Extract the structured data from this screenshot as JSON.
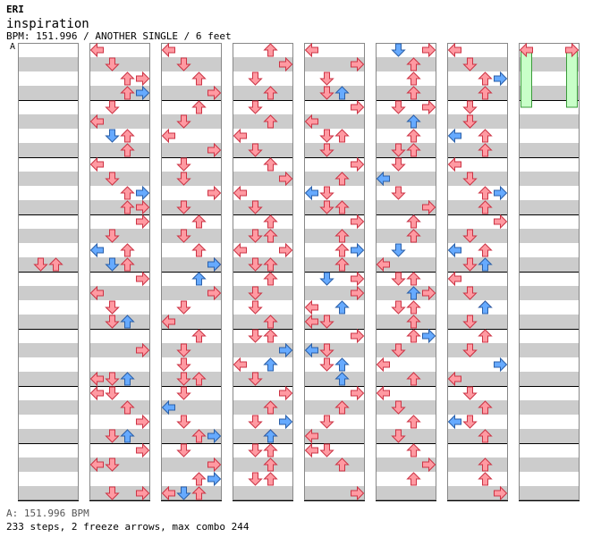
{
  "header": {
    "artist": "ERI",
    "title": "inspiration",
    "info": "BPM: 151.996 / ANOTHER SINGLE / 6 feet",
    "section_marker": "A"
  },
  "footer": {
    "bpm_line": "A: 151.996 BPM",
    "summary": "233 steps, 2 freeze arrows, max combo 244"
  },
  "colors": {
    "normal_arrow": "#ff9aa2",
    "normal_arrow_stroke": "#cc3344",
    "eighth_arrow": "#66aaff",
    "eighth_arrow_stroke": "#2a5fa8",
    "freeze": "#c8ffc8",
    "freeze_stroke": "#3a9a3a",
    "stripe_gray": "#cccccc",
    "measure_line": "#000000"
  },
  "chart_data": {
    "type": "stepchart",
    "lanes": [
      "left",
      "down",
      "up",
      "right"
    ],
    "columns": [
      {
        "arrows": [
          [
            15,
            1,
            0
          ],
          [
            15,
            2,
            0
          ]
        ],
        "freezes": []
      },
      {
        "arrows": [
          [
            0,
            0,
            0
          ],
          [
            1,
            1,
            0
          ],
          [
            2,
            3,
            0
          ],
          [
            2,
            2,
            0
          ],
          [
            3,
            3,
            1
          ],
          [
            3,
            2,
            0
          ],
          [
            4,
            1,
            0
          ],
          [
            5,
            0,
            0
          ],
          [
            6,
            2,
            0
          ],
          [
            6,
            1,
            1
          ],
          [
            7,
            2,
            0
          ],
          [
            8,
            0,
            0
          ],
          [
            9,
            1,
            0
          ],
          [
            10,
            2,
            0
          ],
          [
            10,
            3,
            1
          ],
          [
            11,
            2,
            0
          ],
          [
            11,
            3,
            0
          ],
          [
            12,
            3,
            0
          ],
          [
            13,
            1,
            0
          ],
          [
            14,
            2,
            0
          ],
          [
            14,
            0,
            1
          ],
          [
            15,
            2,
            0
          ],
          [
            15,
            1,
            1
          ],
          [
            16,
            3,
            0
          ],
          [
            17,
            0,
            0
          ],
          [
            18,
            1,
            0
          ],
          [
            18,
            1,
            0
          ],
          [
            19,
            2,
            1
          ],
          [
            19,
            1,
            0
          ],
          [
            21,
            3,
            0
          ],
          [
            23,
            0,
            0
          ],
          [
            23,
            1,
            0
          ],
          [
            23,
            2,
            1
          ],
          [
            24,
            0,
            0
          ],
          [
            24,
            1,
            0
          ],
          [
            25,
            2,
            0
          ],
          [
            26,
            3,
            0
          ],
          [
            27,
            1,
            0
          ],
          [
            27,
            2,
            1
          ],
          [
            28,
            3,
            0
          ],
          [
            29,
            0,
            0
          ],
          [
            29,
            1,
            0
          ],
          [
            31,
            3,
            0
          ],
          [
            31,
            1,
            0
          ]
        ],
        "freezes": []
      },
      {
        "arrows": [
          [
            0,
            0,
            0
          ],
          [
            1,
            1,
            0
          ],
          [
            2,
            2,
            0
          ],
          [
            3,
            3,
            0
          ],
          [
            4,
            2,
            0
          ],
          [
            5,
            1,
            0
          ],
          [
            6,
            0,
            0
          ],
          [
            7,
            3,
            0
          ],
          [
            8,
            1,
            0
          ],
          [
            9,
            1,
            0
          ],
          [
            10,
            3,
            0
          ],
          [
            11,
            1,
            0
          ],
          [
            12,
            2,
            0
          ],
          [
            13,
            1,
            0
          ],
          [
            14,
            2,
            0
          ],
          [
            15,
            3,
            0
          ],
          [
            15,
            3,
            1
          ],
          [
            16,
            2,
            1
          ],
          [
            17,
            3,
            0
          ],
          [
            18,
            1,
            0
          ],
          [
            19,
            0,
            0
          ],
          [
            20,
            2,
            0
          ],
          [
            21,
            1,
            0
          ],
          [
            22,
            1,
            0
          ],
          [
            23,
            2,
            0
          ],
          [
            23,
            1,
            0
          ],
          [
            24,
            1,
            0
          ],
          [
            25,
            0,
            1
          ],
          [
            26,
            1,
            0
          ],
          [
            27,
            2,
            0
          ],
          [
            27,
            3,
            1
          ],
          [
            28,
            1,
            0
          ],
          [
            29,
            3,
            0
          ],
          [
            30,
            2,
            0
          ],
          [
            30,
            3,
            1
          ],
          [
            31,
            0,
            0
          ],
          [
            31,
            2,
            0
          ],
          [
            31,
            1,
            1
          ]
        ],
        "freezes": []
      },
      {
        "arrows": [
          [
            0,
            2,
            0
          ],
          [
            1,
            3,
            0
          ],
          [
            2,
            1,
            0
          ],
          [
            3,
            2,
            0
          ],
          [
            4,
            1,
            0
          ],
          [
            5,
            2,
            0
          ],
          [
            6,
            0,
            0
          ],
          [
            7,
            1,
            0
          ],
          [
            8,
            2,
            0
          ],
          [
            9,
            3,
            0
          ],
          [
            10,
            0,
            0
          ],
          [
            11,
            1,
            0
          ],
          [
            12,
            2,
            0
          ],
          [
            13,
            1,
            0
          ],
          [
            13,
            2,
            0
          ],
          [
            14,
            0,
            0
          ],
          [
            14,
            3,
            0
          ],
          [
            15,
            1,
            0
          ],
          [
            15,
            2,
            0
          ],
          [
            16,
            2,
            0
          ],
          [
            17,
            1,
            0
          ],
          [
            18,
            1,
            0
          ],
          [
            19,
            2,
            0
          ],
          [
            20,
            1,
            0
          ],
          [
            20,
            2,
            0
          ],
          [
            21,
            3,
            1
          ],
          [
            22,
            0,
            0
          ],
          [
            22,
            2,
            1
          ],
          [
            23,
            1,
            0
          ],
          [
            24,
            3,
            0
          ],
          [
            25,
            2,
            0
          ],
          [
            26,
            1,
            0
          ],
          [
            26,
            3,
            1
          ],
          [
            27,
            2,
            0
          ],
          [
            27,
            2,
            1
          ],
          [
            28,
            1,
            0
          ],
          [
            28,
            2,
            0
          ],
          [
            29,
            2,
            0
          ],
          [
            30,
            1,
            0
          ],
          [
            30,
            2,
            0
          ]
        ],
        "freezes": []
      },
      {
        "arrows": [
          [
            0,
            0,
            0
          ],
          [
            1,
            3,
            0
          ],
          [
            2,
            1,
            0
          ],
          [
            3,
            2,
            1
          ],
          [
            3,
            1,
            0
          ],
          [
            4,
            3,
            0
          ],
          [
            5,
            0,
            0
          ],
          [
            6,
            1,
            0
          ],
          [
            6,
            2,
            0
          ],
          [
            7,
            1,
            0
          ],
          [
            8,
            3,
            0
          ],
          [
            9,
            2,
            0
          ],
          [
            10,
            1,
            0
          ],
          [
            10,
            0,
            1
          ],
          [
            11,
            2,
            0
          ],
          [
            11,
            1,
            0
          ],
          [
            12,
            3,
            0
          ],
          [
            13,
            2,
            0
          ],
          [
            14,
            2,
            0
          ],
          [
            14,
            3,
            1
          ],
          [
            15,
            2,
            0
          ],
          [
            16,
            1,
            1
          ],
          [
            16,
            3,
            0
          ],
          [
            17,
            3,
            0
          ],
          [
            18,
            0,
            0
          ],
          [
            18,
            2,
            1
          ],
          [
            19,
            1,
            0
          ],
          [
            19,
            0,
            0
          ],
          [
            20,
            3,
            0
          ],
          [
            21,
            0,
            1
          ],
          [
            21,
            1,
            0
          ],
          [
            22,
            2,
            1
          ],
          [
            22,
            1,
            0
          ],
          [
            23,
            2,
            1
          ],
          [
            24,
            3,
            0
          ],
          [
            25,
            2,
            0
          ],
          [
            26,
            1,
            0
          ],
          [
            27,
            0,
            0
          ],
          [
            28,
            0,
            0
          ],
          [
            28,
            1,
            0
          ],
          [
            29,
            2,
            0
          ],
          [
            31,
            3,
            0
          ]
        ],
        "freezes": []
      },
      {
        "arrows": [
          [
            0,
            1,
            1
          ],
          [
            0,
            3,
            0
          ],
          [
            1,
            2,
            0
          ],
          [
            2,
            2,
            0
          ],
          [
            3,
            2,
            0
          ],
          [
            4,
            1,
            0
          ],
          [
            4,
            3,
            0
          ],
          [
            5,
            2,
            1
          ],
          [
            6,
            2,
            0
          ],
          [
            7,
            1,
            0
          ],
          [
            7,
            2,
            0
          ],
          [
            8,
            1,
            0
          ],
          [
            9,
            0,
            1
          ],
          [
            10,
            1,
            0
          ],
          [
            11,
            3,
            0
          ],
          [
            12,
            2,
            1
          ],
          [
            12,
            2,
            0
          ],
          [
            13,
            2,
            0
          ],
          [
            14,
            1,
            1
          ],
          [
            15,
            0,
            0
          ],
          [
            16,
            2,
            0
          ],
          [
            16,
            1,
            0
          ],
          [
            17,
            2,
            1
          ],
          [
            17,
            3,
            0
          ],
          [
            18,
            1,
            0
          ],
          [
            18,
            2,
            0
          ],
          [
            19,
            2,
            0
          ],
          [
            20,
            2,
            0
          ],
          [
            20,
            3,
            1
          ],
          [
            21,
            1,
            0
          ],
          [
            22,
            0,
            0
          ],
          [
            23,
            2,
            0
          ],
          [
            24,
            0,
            0
          ],
          [
            25,
            1,
            0
          ],
          [
            26,
            2,
            0
          ],
          [
            27,
            1,
            0
          ],
          [
            28,
            2,
            0
          ],
          [
            29,
            3,
            0
          ],
          [
            30,
            2,
            0
          ]
        ],
        "freezes": []
      },
      {
        "arrows": [
          [
            0,
            0,
            0
          ],
          [
            1,
            1,
            0
          ],
          [
            2,
            2,
            0
          ],
          [
            2,
            3,
            1
          ],
          [
            3,
            2,
            0
          ],
          [
            4,
            1,
            0
          ],
          [
            5,
            1,
            0
          ],
          [
            5,
            1,
            0
          ],
          [
            6,
            2,
            0
          ],
          [
            6,
            0,
            1
          ],
          [
            7,
            2,
            0
          ],
          [
            8,
            0,
            0
          ],
          [
            9,
            1,
            0
          ],
          [
            10,
            2,
            0
          ],
          [
            10,
            3,
            1
          ],
          [
            11,
            2,
            0
          ],
          [
            12,
            3,
            0
          ],
          [
            13,
            1,
            0
          ],
          [
            14,
            2,
            0
          ],
          [
            14,
            0,
            1
          ],
          [
            15,
            1,
            0
          ],
          [
            15,
            2,
            1
          ],
          [
            16,
            0,
            0
          ],
          [
            17,
            1,
            0
          ],
          [
            18,
            2,
            0
          ],
          [
            18,
            2,
            1
          ],
          [
            19,
            1,
            0
          ],
          [
            20,
            2,
            0
          ],
          [
            21,
            1,
            0
          ],
          [
            21,
            1,
            0
          ],
          [
            22,
            3,
            1
          ],
          [
            23,
            0,
            0
          ],
          [
            24,
            1,
            0
          ],
          [
            25,
            2,
            0
          ],
          [
            26,
            0,
            1
          ],
          [
            26,
            1,
            0
          ],
          [
            27,
            2,
            0
          ],
          [
            29,
            2,
            0
          ],
          [
            30,
            2,
            0
          ],
          [
            31,
            3,
            0
          ]
        ],
        "freezes": []
      },
      {
        "arrows": [
          [
            0,
            0,
            0
          ],
          [
            0,
            3,
            0
          ]
        ],
        "freezes": [
          [
            0,
            0,
            4
          ],
          [
            0,
            3,
            4
          ]
        ]
      }
    ]
  }
}
